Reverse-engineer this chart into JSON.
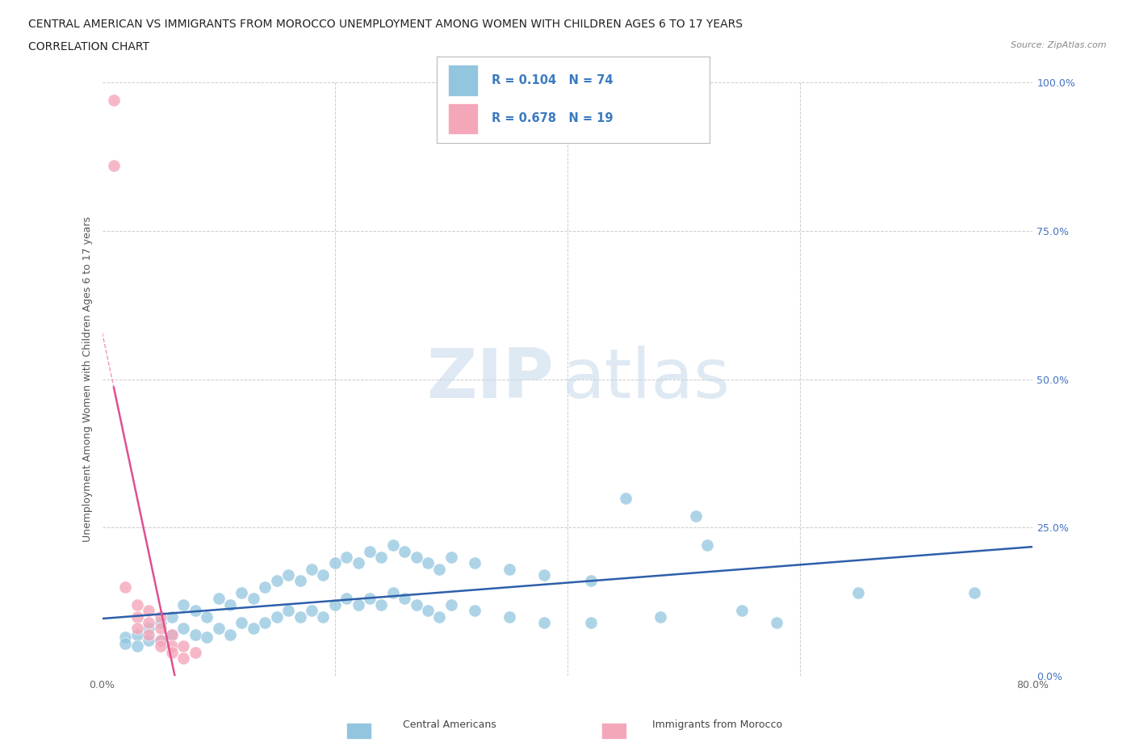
{
  "title_line1": "CENTRAL AMERICAN VS IMMIGRANTS FROM MOROCCO UNEMPLOYMENT AMONG WOMEN WITH CHILDREN AGES 6 TO 17 YEARS",
  "title_line2": "CORRELATION CHART",
  "source_text": "Source: ZipAtlas.com",
  "ylabel": "Unemployment Among Women with Children Ages 6 to 17 years",
  "xlim": [
    0,
    0.8
  ],
  "ylim": [
    0,
    1.0
  ],
  "xticks": [
    0.0,
    0.1,
    0.2,
    0.3,
    0.4,
    0.5,
    0.6,
    0.7,
    0.8
  ],
  "xticklabels": [
    "0.0%",
    "",
    "",
    "",
    "",
    "",
    "",
    "",
    "80.0%"
  ],
  "yticks": [
    0.0,
    0.25,
    0.5,
    0.75,
    1.0
  ],
  "yticklabels": [
    "0.0%",
    "25.0%",
    "50.0%",
    "75.0%",
    "100.0%"
  ],
  "watermark_zip": "ZIP",
  "watermark_atlas": "atlas",
  "blue_color": "#92c5de",
  "pink_color": "#f4a7b9",
  "blue_line_color": "#2e5faa",
  "pink_line_color": "#e05090",
  "blue_scatter": [
    [
      0.02,
      0.065
    ],
    [
      0.02,
      0.055
    ],
    [
      0.03,
      0.07
    ],
    [
      0.03,
      0.05
    ],
    [
      0.04,
      0.08
    ],
    [
      0.04,
      0.06
    ],
    [
      0.05,
      0.09
    ],
    [
      0.05,
      0.06
    ],
    [
      0.06,
      0.1
    ],
    [
      0.06,
      0.07
    ],
    [
      0.07,
      0.12
    ],
    [
      0.07,
      0.08
    ],
    [
      0.08,
      0.11
    ],
    [
      0.08,
      0.07
    ],
    [
      0.09,
      0.1
    ],
    [
      0.09,
      0.065
    ],
    [
      0.1,
      0.13
    ],
    [
      0.1,
      0.08
    ],
    [
      0.11,
      0.12
    ],
    [
      0.11,
      0.07
    ],
    [
      0.12,
      0.14
    ],
    [
      0.12,
      0.09
    ],
    [
      0.13,
      0.13
    ],
    [
      0.13,
      0.08
    ],
    [
      0.14,
      0.15
    ],
    [
      0.14,
      0.09
    ],
    [
      0.15,
      0.16
    ],
    [
      0.15,
      0.1
    ],
    [
      0.16,
      0.17
    ],
    [
      0.16,
      0.11
    ],
    [
      0.17,
      0.16
    ],
    [
      0.17,
      0.1
    ],
    [
      0.18,
      0.18
    ],
    [
      0.18,
      0.11
    ],
    [
      0.19,
      0.17
    ],
    [
      0.19,
      0.1
    ],
    [
      0.2,
      0.19
    ],
    [
      0.2,
      0.12
    ],
    [
      0.21,
      0.2
    ],
    [
      0.21,
      0.13
    ],
    [
      0.22,
      0.19
    ],
    [
      0.22,
      0.12
    ],
    [
      0.23,
      0.21
    ],
    [
      0.23,
      0.13
    ],
    [
      0.24,
      0.2
    ],
    [
      0.24,
      0.12
    ],
    [
      0.25,
      0.22
    ],
    [
      0.25,
      0.14
    ],
    [
      0.26,
      0.21
    ],
    [
      0.26,
      0.13
    ],
    [
      0.27,
      0.2
    ],
    [
      0.27,
      0.12
    ],
    [
      0.28,
      0.19
    ],
    [
      0.28,
      0.11
    ],
    [
      0.29,
      0.18
    ],
    [
      0.29,
      0.1
    ],
    [
      0.3,
      0.2
    ],
    [
      0.3,
      0.12
    ],
    [
      0.32,
      0.19
    ],
    [
      0.32,
      0.11
    ],
    [
      0.35,
      0.18
    ],
    [
      0.35,
      0.1
    ],
    [
      0.38,
      0.17
    ],
    [
      0.38,
      0.09
    ],
    [
      0.42,
      0.16
    ],
    [
      0.42,
      0.09
    ],
    [
      0.45,
      0.3
    ],
    [
      0.48,
      0.1
    ],
    [
      0.51,
      0.27
    ],
    [
      0.52,
      0.22
    ],
    [
      0.55,
      0.11
    ],
    [
      0.58,
      0.09
    ],
    [
      0.65,
      0.14
    ],
    [
      0.75,
      0.14
    ]
  ],
  "pink_scatter": [
    [
      0.01,
      0.97
    ],
    [
      0.01,
      0.86
    ],
    [
      0.02,
      0.15
    ],
    [
      0.03,
      0.12
    ],
    [
      0.03,
      0.1
    ],
    [
      0.03,
      0.08
    ],
    [
      0.04,
      0.11
    ],
    [
      0.04,
      0.09
    ],
    [
      0.04,
      0.07
    ],
    [
      0.05,
      0.1
    ],
    [
      0.05,
      0.08
    ],
    [
      0.05,
      0.06
    ],
    [
      0.05,
      0.05
    ],
    [
      0.06,
      0.07
    ],
    [
      0.06,
      0.05
    ],
    [
      0.06,
      0.04
    ],
    [
      0.07,
      0.05
    ],
    [
      0.07,
      0.03
    ],
    [
      0.08,
      0.04
    ]
  ],
  "background_color": "#ffffff",
  "grid_color": "#cccccc"
}
